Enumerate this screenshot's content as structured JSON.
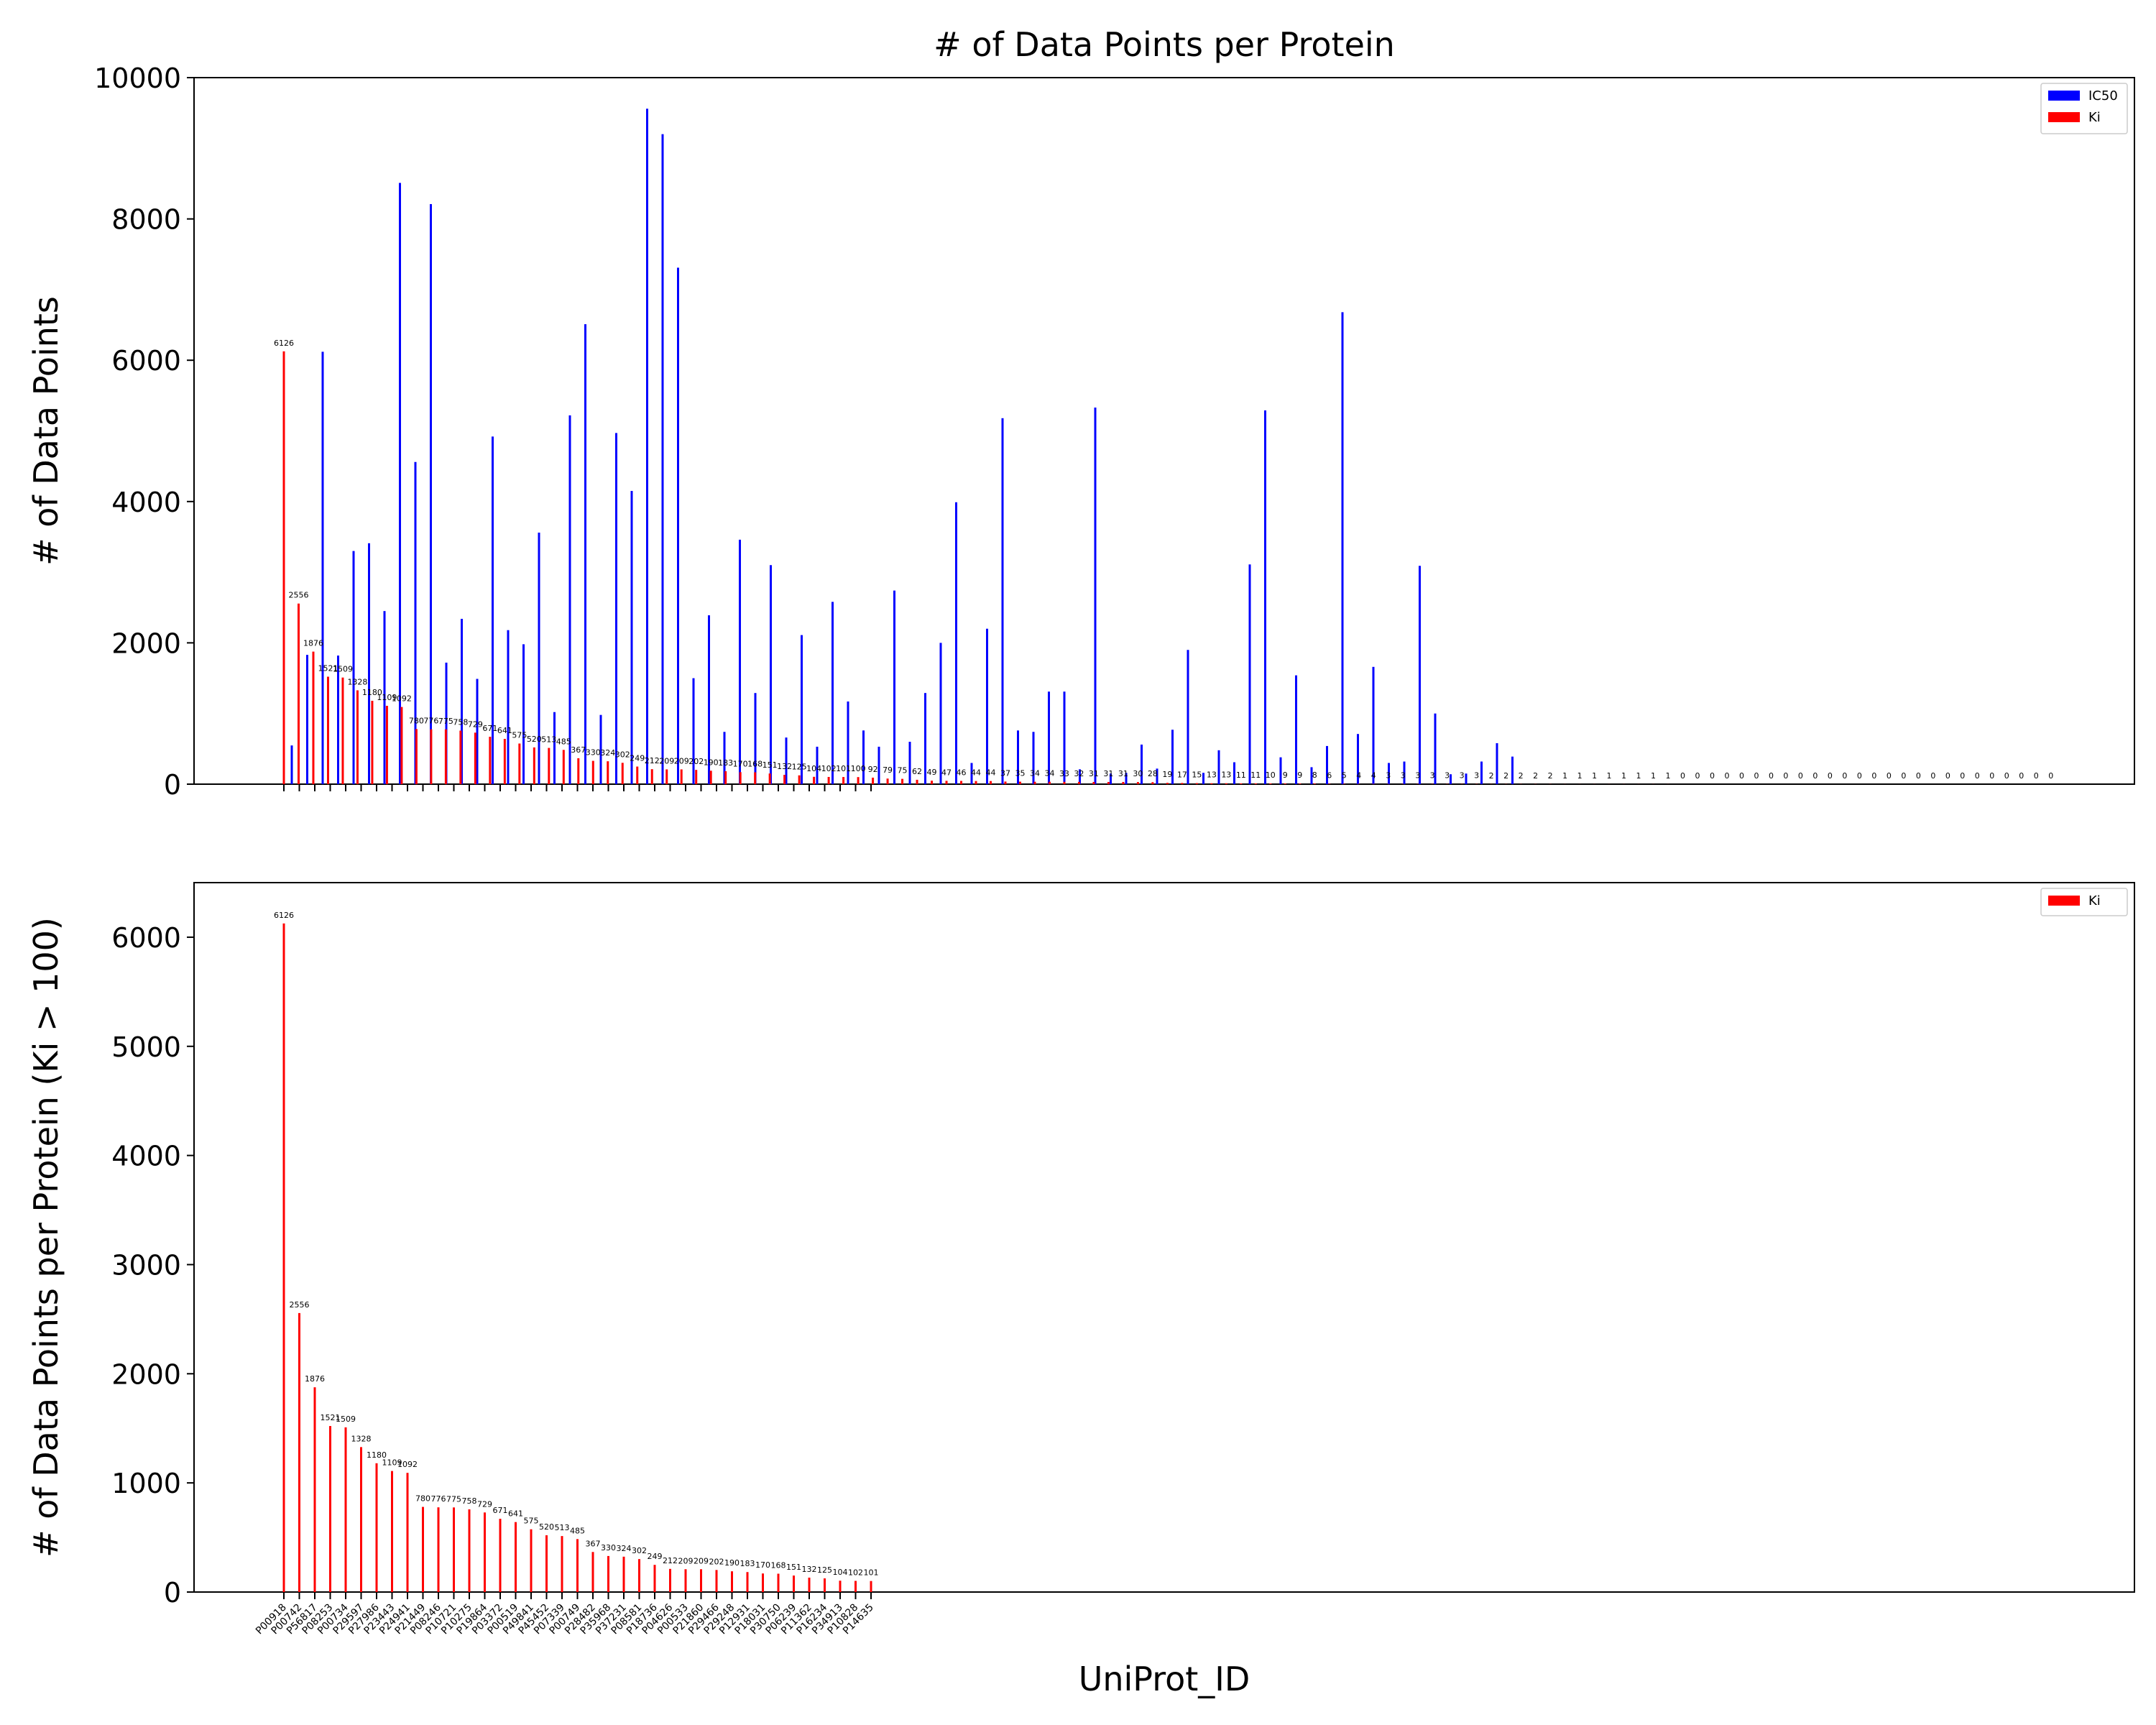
{
  "chart_data": [
    {
      "type": "bar",
      "title": "# of Data Points per Protein",
      "xlabel": "",
      "ylabel": "# of Data Points",
      "ylim": [
        0,
        10000
      ],
      "yticks": [
        0,
        2000,
        4000,
        6000,
        8000,
        10000
      ],
      "legend_position": "top-right",
      "grid": false,
      "series": [
        {
          "name": "IC50",
          "color": "#0000ff",
          "values": [
            548,
            1830,
            6120,
            1820,
            3300,
            3410,
            2450,
            8510,
            4560,
            8210,
            1720,
            2340,
            1490,
            4920,
            2180,
            1980,
            3560,
            1020,
            5220,
            6510,
            980,
            4970,
            4150,
            9560,
            9200,
            7310,
            1500,
            2390,
            740,
            3460,
            1290,
            3100,
            660,
            2110,
            530,
            2580,
            1170,
            760,
            530,
            2740,
            600,
            1290,
            2000,
            3990,
            300,
            2200,
            5180,
            760,
            740,
            1310,
            1310,
            210,
            5330,
            150,
            160,
            560,
            220,
            770,
            1900,
            160,
            480,
            310,
            3110,
            5290,
            380,
            1540,
            240,
            540,
            6680,
            710,
            1660,
            300,
            320,
            3090,
            1000,
            140,
            150,
            320,
            580,
            390
          ],
          "label_values": []
        },
        {
          "name": "Ki",
          "color": "#ff0000",
          "values": [
            6126,
            2556,
            1876,
            1521,
            1509,
            1328,
            1180,
            1109,
            1092,
            780,
            776,
            775,
            758,
            729,
            671,
            641,
            575,
            520,
            513,
            485,
            367,
            330,
            324,
            302,
            249,
            212,
            209,
            209,
            202,
            190,
            183,
            170,
            168,
            151,
            132,
            125,
            104,
            102,
            101,
            100,
            92,
            79,
            75,
            62,
            49,
            47,
            46,
            44,
            44,
            37,
            35,
            34,
            34,
            33,
            32,
            31,
            31,
            31,
            30,
            28,
            19,
            17,
            15,
            13,
            13,
            11,
            11,
            10,
            9,
            9,
            8,
            6,
            5,
            4,
            4,
            3,
            3,
            3,
            3,
            3,
            3,
            3,
            2,
            2,
            2,
            2,
            2,
            1,
            1,
            1,
            1,
            1,
            1,
            1,
            1,
            0,
            0,
            0,
            0,
            0,
            0,
            0,
            0,
            0,
            0,
            0,
            0,
            0,
            0,
            0,
            0,
            0,
            0,
            0,
            0,
            0,
            0,
            0,
            0,
            0,
            0
          ],
          "label_values": [
            "6126",
            "2556",
            "1876",
            "1521",
            "1509",
            "1328",
            "1180",
            "1109",
            "1092",
            "780",
            "776",
            "775",
            "758",
            "729",
            "671",
            "641",
            "575",
            "520",
            "513",
            "485",
            "367",
            "330",
            "324",
            "302",
            "249",
            "212",
            "209",
            "209",
            "202",
            "190",
            "183",
            "170",
            "168",
            "151",
            "132",
            "125",
            "104",
            "102",
            "101",
            "100",
            "92",
            "79",
            "75",
            "62",
            "49",
            "47",
            "46",
            "44",
            "44",
            "37",
            "35",
            "34",
            "34",
            "33",
            "32",
            "31",
            "31",
            "31",
            "30",
            "28",
            "19",
            "17",
            "15",
            "13",
            "13",
            "11",
            "11",
            "10",
            "9",
            "9",
            "8",
            "6",
            "5",
            "4",
            "4",
            "3",
            "3",
            "3",
            "3",
            "3",
            "3",
            "3",
            "2",
            "2",
            "2",
            "2",
            "2",
            "1",
            "1",
            "1",
            "1",
            "1",
            "1",
            "1",
            "1",
            "0",
            "0",
            "0",
            "0",
            "0",
            "0",
            "0",
            "0",
            "0",
            "0",
            "0",
            "0",
            "0",
            "0",
            "0",
            "0",
            "0",
            "0",
            "0",
            "0",
            "0",
            "0",
            "0",
            "0",
            "0",
            "0"
          ]
        }
      ]
    },
    {
      "type": "bar",
      "title": "",
      "xlabel": "UniProt_ID",
      "ylabel": "# of Data Points per Protein (Ki > 100)",
      "ylim": [
        0,
        6500
      ],
      "yticks": [
        0,
        1000,
        2000,
        3000,
        4000,
        5000,
        6000
      ],
      "legend_position": "top-right",
      "grid": false,
      "categories": [
        "P00918",
        "P00742",
        "P56817",
        "P08253",
        "P00734",
        "P29597",
        "P27986",
        "P23443",
        "P24941",
        "P21449",
        "P08246",
        "P10721",
        "P10275",
        "P19864",
        "P03372",
        "P00519",
        "P49841",
        "P45452",
        "P07339",
        "P00749",
        "P28482",
        "P35968",
        "P37231",
        "P08581",
        "P18736",
        "P04626",
        "P00533",
        "P21860",
        "P29466",
        "P29248",
        "P12931",
        "P18031",
        "P30750",
        "P06239",
        "P11362",
        "P16234",
        "P34913",
        "P10828",
        "P14635"
      ],
      "series": [
        {
          "name": "Ki",
          "color": "#ff0000",
          "values": [
            6126,
            2556,
            1876,
            1521,
            1509,
            1328,
            1180,
            1109,
            1092,
            780,
            776,
            775,
            758,
            729,
            671,
            641,
            575,
            520,
            513,
            485,
            367,
            330,
            324,
            302,
            249,
            212,
            209,
            209,
            202,
            190,
            183,
            170,
            168,
            151,
            132,
            125,
            104,
            102,
            101
          ],
          "label_values": [
            "6126",
            "2556",
            "1876",
            "1521",
            "1509",
            "1328",
            "1180",
            "1109",
            "1092",
            "780",
            "776",
            "775",
            "758",
            "729",
            "671",
            "641",
            "575",
            "520",
            "513",
            "485",
            "367",
            "330",
            "324",
            "302",
            "249",
            "212",
            "209",
            "209",
            "202",
            "190",
            "183",
            "170",
            "168",
            "151",
            "132",
            "125",
            "104",
            "102",
            "101"
          ]
        }
      ]
    }
  ]
}
